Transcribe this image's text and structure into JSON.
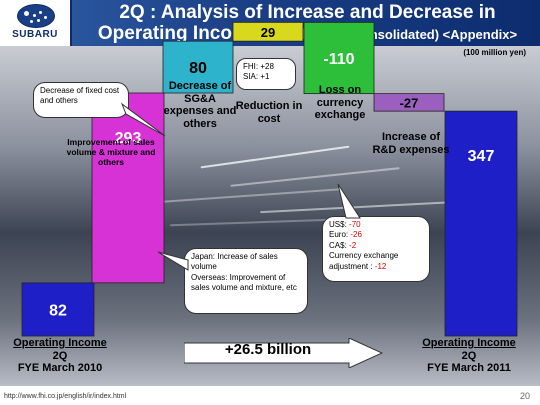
{
  "header": {
    "logo_text": "SUBARU",
    "title_line1": "2Q : Analysis of Increase and Decrease in",
    "title_line2_main": "Operating Income Changes",
    "title_line2_sub": "(consolidated) <Appendix>"
  },
  "units": "(100 million yen)",
  "chart_data": {
    "type": "bar",
    "subtype": "waterfall",
    "categories": [
      "Operating Income 2Q FYE March 2010",
      "Improvement of sales volume & mixture and others",
      "Decrease of SG&A expenses and others",
      "Reduction in cost",
      "Loss on currency exchange",
      "Increase of R&D expenses",
      "Operating Income 2Q FYE March 2011"
    ],
    "values": [
      82,
      293,
      80,
      29,
      -110,
      -27,
      347
    ],
    "bar_labels": [
      "82",
      "293",
      "80",
      "29",
      "-110",
      "-27",
      "347"
    ],
    "colors": [
      "#1f1fc7",
      "#d632d6",
      "#2db4cc",
      "#d8d81c",
      "#2dbe3a",
      "#9b5fc0",
      "#1f1fc7"
    ],
    "label_colors": [
      "#ffffff",
      "#ffffff",
      "#000000",
      "#000000",
      "#ffffff",
      "#000000",
      "#ffffff"
    ],
    "ylim": [
      0,
      500
    ]
  },
  "captions": {
    "start_line1": "Operating Income",
    "start_line2": "2Q",
    "start_line3": "FYE March 2010",
    "end_line1": "Operating  Income",
    "end_line2": "2Q",
    "end_line3": "FYE March 2011",
    "sales": "Improvement of sales volume & mixture and others",
    "sga": "Decrease of SG&A expenses and others",
    "cost": "Reduction in cost",
    "fx": "Loss on currency exchange",
    "rnd": "Increase of R&D expenses"
  },
  "callouts": {
    "fixed_cost": "Decrease of fixed cost and others",
    "fhi": "FHI: +28",
    "sia": "SIA: +1",
    "japan": "Japan: Increase of sales volume",
    "overseas": "Overseas: Improvement of sales volume and mixture, etc",
    "usd_label": "US$:",
    "usd_value": "-70",
    "euro_label": "Euro:",
    "euro_value": "-26",
    "cad_label": "CA$:",
    "cad_value": "-2",
    "adj_label": "Currency exchange adjustment :",
    "adj_value": "-12"
  },
  "summary_arrow": "+26.5 billion",
  "footer": {
    "url": "http://www.fhi.co.jp/english/ir/index.html",
    "page": "20"
  }
}
